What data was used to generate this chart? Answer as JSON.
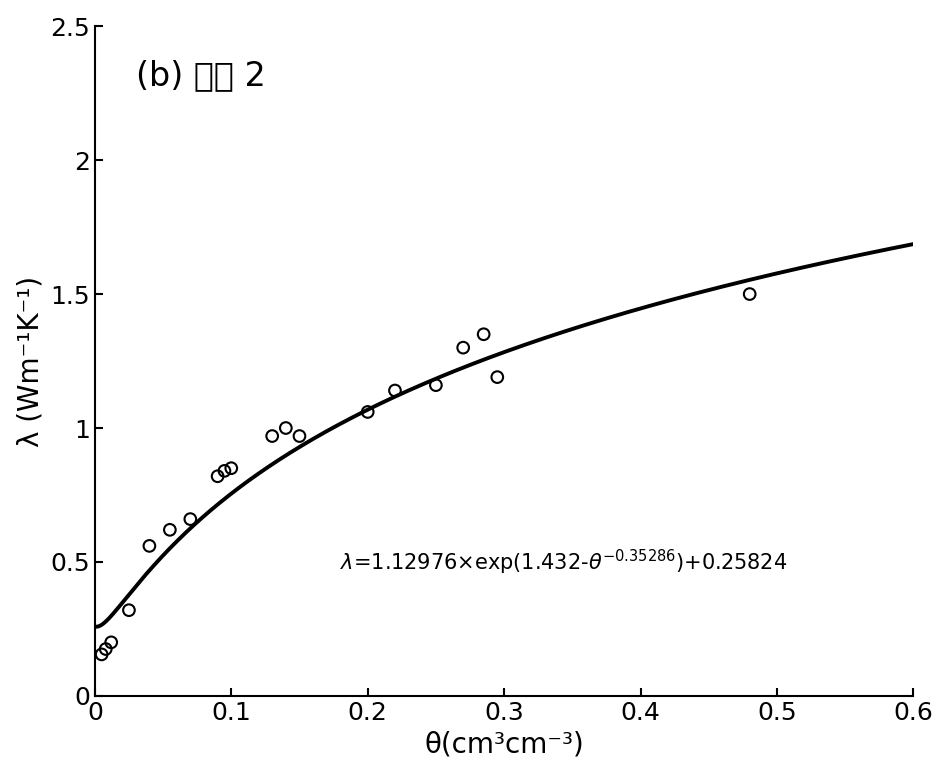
{
  "title": "(b) 土壤 2",
  "xlabel": "θ(cm³cm⁻³)",
  "ylabel": "λ (Wm⁻¹K⁻¹)",
  "xlim": [
    0,
    0.6
  ],
  "ylim": [
    0,
    2.5
  ],
  "xticks": [
    0,
    0.1,
    0.2,
    0.3,
    0.4,
    0.5,
    0.6
  ],
  "yticks": [
    0,
    0.5,
    1.0,
    1.5,
    2.0,
    2.5
  ],
  "scatter_x": [
    0.005,
    0.008,
    0.012,
    0.025,
    0.04,
    0.055,
    0.07,
    0.09,
    0.095,
    0.1,
    0.13,
    0.14,
    0.15,
    0.2,
    0.22,
    0.25,
    0.27,
    0.285,
    0.295,
    0.48
  ],
  "scatter_y": [
    0.155,
    0.175,
    0.2,
    0.32,
    0.56,
    0.62,
    0.66,
    0.82,
    0.84,
    0.85,
    0.97,
    1.0,
    0.97,
    1.06,
    1.14,
    1.16,
    1.3,
    1.35,
    1.19,
    1.5
  ],
  "curve_params": {
    "A": 1.12976,
    "B": 1.432,
    "C": -0.35286,
    "D": 0.25824
  },
  "line_color": "#000000",
  "scatter_facecolor": "none",
  "scatter_edgecolor": "#000000",
  "scatter_size": 70,
  "title_fontsize": 24,
  "label_fontsize": 20,
  "tick_fontsize": 18,
  "eq_fontsize": 15,
  "line_width": 2.8
}
